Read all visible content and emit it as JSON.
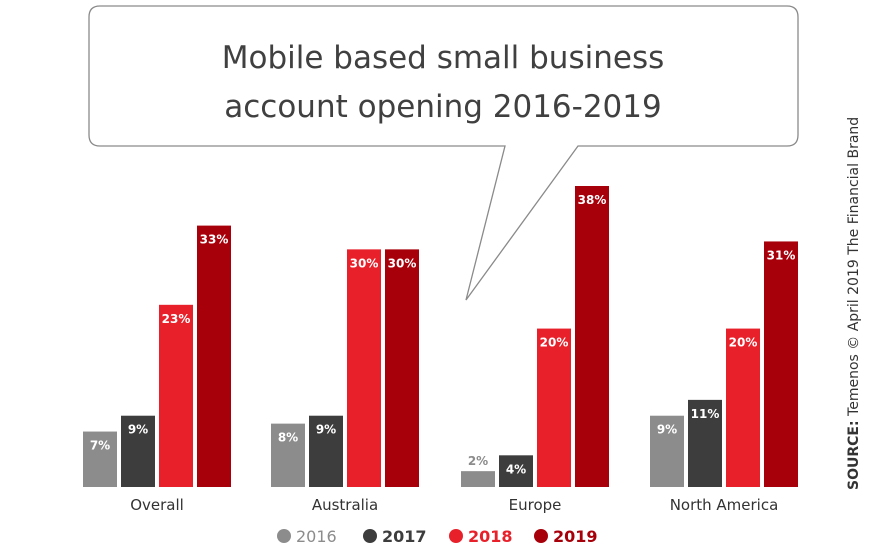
{
  "chart_data": {
    "type": "bar",
    "title": "Mobile based small business account opening 2016-2019",
    "title_lines": [
      "Mobile based small business",
      "account opening 2016-2019"
    ],
    "categories": [
      "Overall",
      "Australia",
      "Europe",
      "North America"
    ],
    "series": [
      {
        "name": "2016",
        "color": "#8c8c8c",
        "values": [
          7,
          8,
          2,
          9
        ],
        "labels": [
          "7%",
          "8%",
          "2%",
          "9%"
        ]
      },
      {
        "name": "2017",
        "color": "#3d3d3d",
        "values": [
          9,
          9,
          4,
          11
        ],
        "labels": [
          "9%",
          "9%",
          "4%",
          "11%"
        ]
      },
      {
        "name": "2018",
        "color": "#e8202a",
        "values": [
          23,
          30,
          20,
          20
        ],
        "labels": [
          "23%",
          "30%",
          "20%",
          "20%"
        ]
      },
      {
        "name": "2019",
        "color": "#a8000a",
        "values": [
          33,
          30,
          38,
          31
        ],
        "labels": [
          "33%",
          "30%",
          "38%",
          "31%"
        ]
      }
    ],
    "ylim": [
      0,
      38
    ],
    "grid": false,
    "legend_position": "bottom",
    "source_label": "SOURCE:",
    "source_text": " Temenos © April 2019 The Financial Brand"
  }
}
